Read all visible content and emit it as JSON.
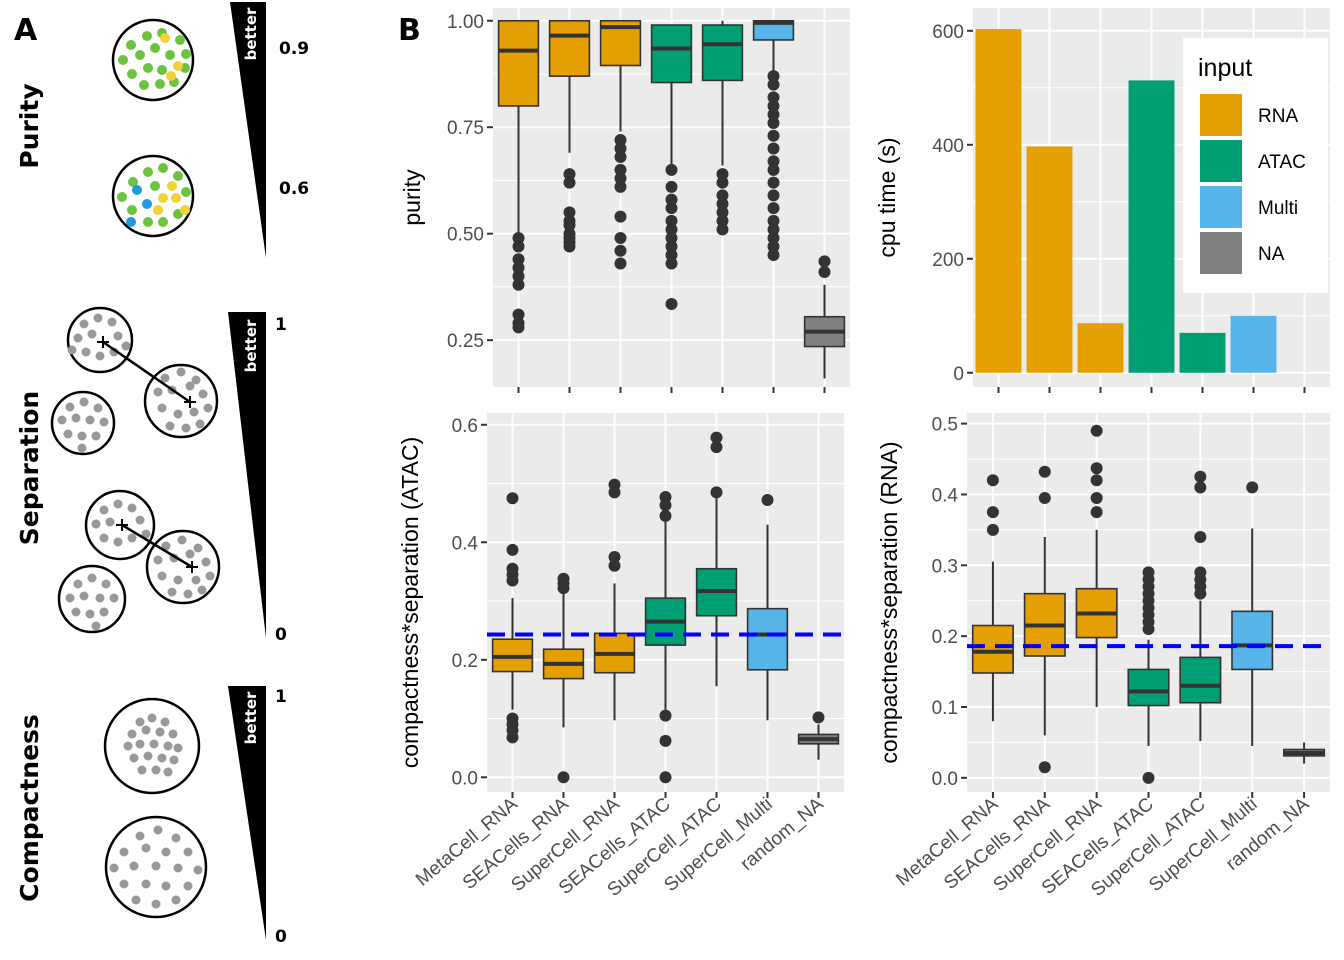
{
  "panel_a": {
    "letter": "A",
    "rows": [
      {
        "label": "Purity",
        "better": "better",
        "top_value": "0.9",
        "bottom_value": "0.6"
      },
      {
        "label": "Separation",
        "better": "better",
        "top_value": "1",
        "bottom_value": "0"
      },
      {
        "label": "Compactness",
        "better": "better",
        "top_value": "1",
        "bottom_value": "0"
      }
    ]
  },
  "panel_b": {
    "letter": "B"
  },
  "colors": {
    "RNA": "#E69F00",
    "ATAC": "#009E73",
    "Multi": "#56B4E9",
    "NA": "#808080",
    "panel_bg": "#EBEBEB",
    "ref_line": "#0000FF"
  },
  "chart_data": [
    {
      "type": "box",
      "id": "purity",
      "ylabel": "purity",
      "ylim": [
        0.14,
        1.03
      ],
      "yticks": [
        0.25,
        0.5,
        0.75,
        1.0
      ],
      "ytick_labels": [
        "0.25",
        "0.50",
        "0.75",
        "1.00"
      ],
      "categories": [
        "MetaCell_RNA",
        "SEACells_RNA",
        "SuperCell_RNA",
        "SEACells_ATAC",
        "SuperCell_ATAC",
        "SuperCell_Multi",
        "random_NA"
      ],
      "input": [
        "RNA",
        "RNA",
        "RNA",
        "ATAC",
        "ATAC",
        "Multi",
        "NA"
      ],
      "boxes": [
        {
          "q1": 0.8,
          "median": 0.93,
          "q3": 1.0,
          "whisker_low": 0.5,
          "whisker_high": 1.0,
          "outliers": [
            0.49,
            0.47,
            0.44,
            0.42,
            0.4,
            0.38,
            0.31,
            0.29,
            0.28
          ]
        },
        {
          "q1": 0.87,
          "median": 0.965,
          "q3": 1.0,
          "whisker_low": 0.69,
          "whisker_high": 1.0,
          "outliers": [
            0.64,
            0.62,
            0.55,
            0.53,
            0.52,
            0.5,
            0.49,
            0.48,
            0.47
          ]
        },
        {
          "q1": 0.895,
          "median": 0.985,
          "q3": 1.0,
          "whisker_low": 0.74,
          "whisker_high": 1.0,
          "outliers": [
            0.72,
            0.7,
            0.68,
            0.65,
            0.63,
            0.61,
            0.54,
            0.49,
            0.46,
            0.43
          ]
        },
        {
          "q1": 0.855,
          "median": 0.935,
          "q3": 0.99,
          "whisker_low": 0.66,
          "whisker_high": 0.99,
          "outliers": [
            0.65,
            0.61,
            0.58,
            0.56,
            0.53,
            0.51,
            0.49,
            0.47,
            0.45,
            0.43,
            0.335
          ]
        },
        {
          "q1": 0.86,
          "median": 0.945,
          "q3": 0.99,
          "whisker_low": 0.66,
          "whisker_high": 1.0,
          "outliers": [
            0.64,
            0.62,
            0.59,
            0.57,
            0.55,
            0.53,
            0.51
          ]
        },
        {
          "q1": 0.955,
          "median": 0.995,
          "q3": 1.0,
          "whisker_low": 0.88,
          "whisker_high": 1.0,
          "outliers": [
            0.87,
            0.85,
            0.82,
            0.8,
            0.78,
            0.76,
            0.73,
            0.7,
            0.67,
            0.65,
            0.62,
            0.59,
            0.56,
            0.53,
            0.51,
            0.49,
            0.47,
            0.45
          ]
        },
        {
          "q1": 0.235,
          "median": 0.27,
          "q3": 0.305,
          "whisker_low": 0.16,
          "whisker_high": 0.38,
          "outliers": [
            0.435,
            0.41
          ]
        }
      ]
    },
    {
      "type": "bar",
      "id": "cpu_time",
      "ylabel": "cpu time (s)",
      "ylim": [
        -25,
        640
      ],
      "yticks": [
        0,
        200,
        400,
        600
      ],
      "ytick_labels": [
        "0",
        "200",
        "400",
        "600"
      ],
      "categories": [
        "MetaCell_RNA",
        "SEACells_RNA",
        "SuperCell_RNA",
        "SEACells_ATAC",
        "SuperCell_ATAC",
        "SuperCell_Multi",
        "random_NA"
      ],
      "input": [
        "RNA",
        "RNA",
        "RNA",
        "ATAC",
        "ATAC",
        "Multi",
        "NA"
      ],
      "values": [
        603,
        397,
        87,
        513,
        70,
        100,
        0
      ],
      "legend": {
        "title": "input",
        "entries": [
          "RNA",
          "ATAC",
          "Multi",
          "NA"
        ],
        "position": "top-right"
      }
    },
    {
      "type": "box",
      "id": "atac_sep",
      "ylabel": "compactness*separation (ATAC)",
      "ylim": [
        -0.025,
        0.62
      ],
      "yticks": [
        0.0,
        0.2,
        0.4,
        0.6
      ],
      "ytick_labels": [
        "0.0",
        "0.2",
        "0.4",
        "0.6"
      ],
      "ref_line": 0.243,
      "categories": [
        "MetaCell_RNA",
        "SEACells_RNA",
        "SuperCell_RNA",
        "SEACells_ATAC",
        "SuperCell_ATAC",
        "SuperCell_Multi",
        "random_NA"
      ],
      "input": [
        "RNA",
        "RNA",
        "RNA",
        "ATAC",
        "ATAC",
        "Multi",
        "NA"
      ],
      "boxes": [
        {
          "q1": 0.18,
          "median": 0.205,
          "q3": 0.235,
          "whisker_low": 0.115,
          "whisker_high": 0.305,
          "outliers": [
            0.475,
            0.387,
            0.355,
            0.345,
            0.335,
            0.1,
            0.09,
            0.08,
            0.068
          ]
        },
        {
          "q1": 0.168,
          "median": 0.193,
          "q3": 0.218,
          "whisker_low": 0.085,
          "whisker_high": 0.315,
          "outliers": [
            0.338,
            0.33,
            0.322,
            0.0
          ]
        },
        {
          "q1": 0.178,
          "median": 0.21,
          "q3": 0.245,
          "whisker_low": 0.097,
          "whisker_high": 0.33,
          "outliers": [
            0.498,
            0.485,
            0.375,
            0.36
          ]
        },
        {
          "q1": 0.225,
          "median": 0.265,
          "q3": 0.305,
          "whisker_low": 0.115,
          "whisker_high": 0.435,
          "outliers": [
            0.477,
            0.463,
            0.445,
            0.105,
            0.062,
            0.0
          ]
        },
        {
          "q1": 0.275,
          "median": 0.317,
          "q3": 0.355,
          "whisker_low": 0.155,
          "whisker_high": 0.475,
          "outliers": [
            0.578,
            0.562,
            0.485
          ]
        },
        {
          "q1": 0.183,
          "median": 0.243,
          "q3": 0.287,
          "whisker_low": 0.097,
          "whisker_high": 0.43,
          "outliers": [
            0.472
          ]
        },
        {
          "q1": 0.057,
          "median": 0.065,
          "q3": 0.073,
          "whisker_low": 0.03,
          "whisker_high": 0.09,
          "outliers": [
            0.102
          ]
        }
      ]
    },
    {
      "type": "box",
      "id": "rna_sep",
      "ylabel": "compactness*separation (RNA)",
      "ylim": [
        -0.02,
        0.515
      ],
      "yticks": [
        0.0,
        0.1,
        0.2,
        0.3,
        0.4,
        0.5
      ],
      "ytick_labels": [
        "0.0",
        "0.1",
        "0.2",
        "0.3",
        "0.4",
        "0.5"
      ],
      "ref_line": 0.186,
      "categories": [
        "MetaCell_RNA",
        "SEACells_RNA",
        "SuperCell_RNA",
        "SEACells_ATAC",
        "SuperCell_ATAC",
        "SuperCell_Multi",
        "random_NA"
      ],
      "input": [
        "RNA",
        "RNA",
        "RNA",
        "ATAC",
        "ATAC",
        "Multi",
        "NA"
      ],
      "boxes": [
        {
          "q1": 0.148,
          "median": 0.178,
          "q3": 0.215,
          "whisker_low": 0.08,
          "whisker_high": 0.305,
          "outliers": [
            0.42,
            0.375,
            0.35
          ]
        },
        {
          "q1": 0.172,
          "median": 0.215,
          "q3": 0.26,
          "whisker_low": 0.06,
          "whisker_high": 0.34,
          "outliers": [
            0.432,
            0.395,
            0.015
          ]
        },
        {
          "q1": 0.198,
          "median": 0.232,
          "q3": 0.267,
          "whisker_low": 0.1,
          "whisker_high": 0.35,
          "outliers": [
            0.49,
            0.437,
            0.42,
            0.395,
            0.375
          ]
        },
        {
          "q1": 0.102,
          "median": 0.122,
          "q3": 0.153,
          "whisker_low": 0.045,
          "whisker_high": 0.195,
          "outliers": [
            0.29,
            0.28,
            0.27,
            0.26,
            0.25,
            0.24,
            0.23,
            0.22,
            0.21,
            0.0
          ]
        },
        {
          "q1": 0.106,
          "median": 0.13,
          "q3": 0.17,
          "whisker_low": 0.052,
          "whisker_high": 0.25,
          "outliers": [
            0.425,
            0.41,
            0.34,
            0.29,
            0.28,
            0.27,
            0.26
          ]
        },
        {
          "q1": 0.153,
          "median": 0.187,
          "q3": 0.235,
          "whisker_low": 0.045,
          "whisker_high": 0.352,
          "outliers": [
            0.41
          ]
        },
        {
          "q1": 0.031,
          "median": 0.035,
          "q3": 0.04,
          "whisker_low": 0.02,
          "whisker_high": 0.05,
          "outliers": []
        }
      ]
    }
  ]
}
